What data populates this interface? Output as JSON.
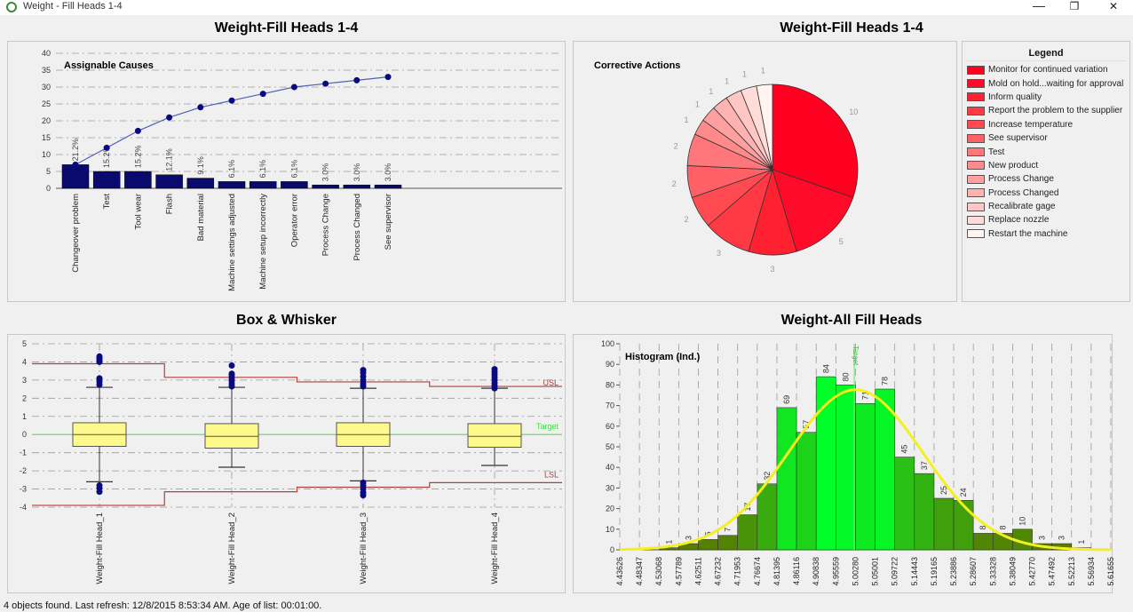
{
  "window": {
    "title": "Weight - Fill Heads 1-4",
    "minimize": "—",
    "restore": "❐",
    "close": "✕"
  },
  "panels": {
    "top_left_title": "Weight-Fill Heads 1-4",
    "top_right_title": "Weight-Fill Heads 1-4",
    "bottom_left_title": "Box & Whisker",
    "bottom_right_title": "Weight-All Fill Heads"
  },
  "legend": {
    "title": "Legend",
    "items": [
      "Monitor for continued variation",
      "Mold on hold...waiting for approval",
      "Inform quality",
      "Report the problem to the supplier",
      "Increase temperature",
      "See supervisor",
      "Test",
      "New product",
      "Process Change",
      "Process Changed",
      "Recalibrate gage",
      "Replace nozzle",
      "Restart the machine"
    ],
    "colors": [
      "#ff0020",
      "#ff0a28",
      "#ff2030",
      "#ff3a44",
      "#ff4a52",
      "#ff6066",
      "#ff777a",
      "#ff8a8c",
      "#ffa0a0",
      "#ffb2b2",
      "#ffc6c4",
      "#ffdcd8",
      "#fff4f0"
    ]
  },
  "status": "4 objects found.  Last refresh: 12/8/2015 8:53:34 AM.  Age of list: 00:01:00.",
  "chart_data": [
    {
      "type": "bar",
      "subtype": "pareto",
      "title": "Assignable Causes",
      "categories": [
        "Changeover problem",
        "Test",
        "Tool wear",
        "Flash",
        "Bad material",
        "Machine settings adjusted",
        "Machine setup incorrectly",
        "Operator error",
        "Process Change",
        "Process Changed",
        "See supervisor"
      ],
      "values": [
        7,
        5,
        5,
        4,
        3,
        2,
        2,
        2,
        1,
        1,
        1
      ],
      "data_labels": [
        "21.2%",
        "15.2%",
        "15.2%",
        "12.1%",
        "9.1%",
        "6.1%",
        "6.1%",
        "6.1%",
        "3.0%",
        "3.0%",
        "3.0%"
      ],
      "cumulative": [
        7,
        12,
        17,
        21,
        24,
        26,
        28,
        30,
        31,
        32,
        33
      ],
      "ylim": [
        0,
        40
      ],
      "yticks": [
        0,
        5,
        10,
        15,
        20,
        25,
        30,
        35,
        40
      ],
      "grid": true,
      "colors": {
        "bar": "#0a0a6e",
        "line": "#5060b0",
        "marker": "#0a0a80"
      }
    },
    {
      "type": "pie",
      "title": "Corrective Actions",
      "categories": [
        "Monitor for continued variation",
        "Mold on hold...waiting for approval",
        "Inform quality",
        "Report the problem to the supplier",
        "Increase temperature",
        "See supervisor",
        "Test",
        "New product",
        "Process Change",
        "Process Changed",
        "Recalibrate gage",
        "Replace nozzle",
        "Restart the machine"
      ],
      "values": [
        10,
        5,
        3,
        3,
        2,
        2,
        2,
        1,
        1,
        1,
        1,
        1,
        1
      ],
      "legend": "right"
    },
    {
      "type": "box",
      "categories": [
        "Weight-Fill Head_1",
        "Weight-Fill Head_2",
        "Weight-Fill Head_3",
        "Weight-Fill Head_4"
      ],
      "boxes": [
        {
          "q1": -0.65,
          "median": 0,
          "q3": 0.65,
          "low": -2.6,
          "high": 2.6,
          "outliers": [
            2.75,
            2.9,
            3.05,
            3.1,
            4.0,
            4.1,
            4.2,
            4.3,
            -2.8,
            -2.95,
            -3.15
          ]
        },
        {
          "q1": -0.75,
          "median": -0.1,
          "q3": 0.6,
          "low": -1.8,
          "high": 2.6,
          "outliers": [
            2.65,
            2.8,
            2.95,
            3.1,
            3.25,
            3.35,
            3.8
          ]
        },
        {
          "q1": -0.65,
          "median": 0,
          "q3": 0.65,
          "low": -2.55,
          "high": 2.55,
          "outliers": [
            2.65,
            2.8,
            3.0,
            3.2,
            3.4,
            3.55,
            -2.65,
            -2.8,
            -3.0,
            -3.2,
            -3.35
          ]
        },
        {
          "q1": -0.7,
          "median": -0.1,
          "q3": 0.6,
          "low": -1.7,
          "high": 2.55,
          "outliers": [
            2.55,
            2.7,
            2.85,
            3.0,
            3.15,
            3.3,
            3.45,
            3.6
          ]
        }
      ],
      "usl": [
        3.9,
        3.15,
        2.9,
        2.65
      ],
      "lsl": [
        -3.9,
        -3.15,
        -2.9,
        -2.65
      ],
      "target": 0,
      "usl_label": "USL",
      "lsl_label": "LSL",
      "target_label": "Target",
      "ylim": [
        -4,
        5
      ],
      "yticks": [
        -4,
        -3,
        -2,
        -1,
        0,
        1,
        2,
        3,
        4,
        5
      ],
      "grid": true
    },
    {
      "type": "bar",
      "subtype": "histogram",
      "title": "Histogram (Ind.)",
      "bin_edges": [
        "4.43626",
        "4.48347",
        "4.53068",
        "4.57789",
        "4.62511",
        "4.67232",
        "4.71953",
        "4.76674",
        "4.81395",
        "4.86116",
        "4.90838",
        "4.95559",
        "5.00280",
        "5.05001",
        "5.09722",
        "5.14443",
        "5.19165",
        "5.23886",
        "5.28607",
        "5.33328",
        "5.38049",
        "5.42770",
        "5.47492",
        "5.52213",
        "5.56934",
        "5.61655"
      ],
      "values": [
        0,
        0,
        1,
        3,
        5,
        7,
        17,
        32,
        69,
        57,
        84,
        80,
        71,
        78,
        45,
        37,
        25,
        24,
        8,
        8,
        10,
        3,
        3,
        1,
        0
      ],
      "target": 5.0,
      "target_label": "Target",
      "normal_curve": true,
      "ylim": [
        0,
        100
      ],
      "yticks": [
        0,
        10,
        20,
        30,
        40,
        50,
        60,
        70,
        80,
        90,
        100
      ],
      "grid": true
    }
  ]
}
